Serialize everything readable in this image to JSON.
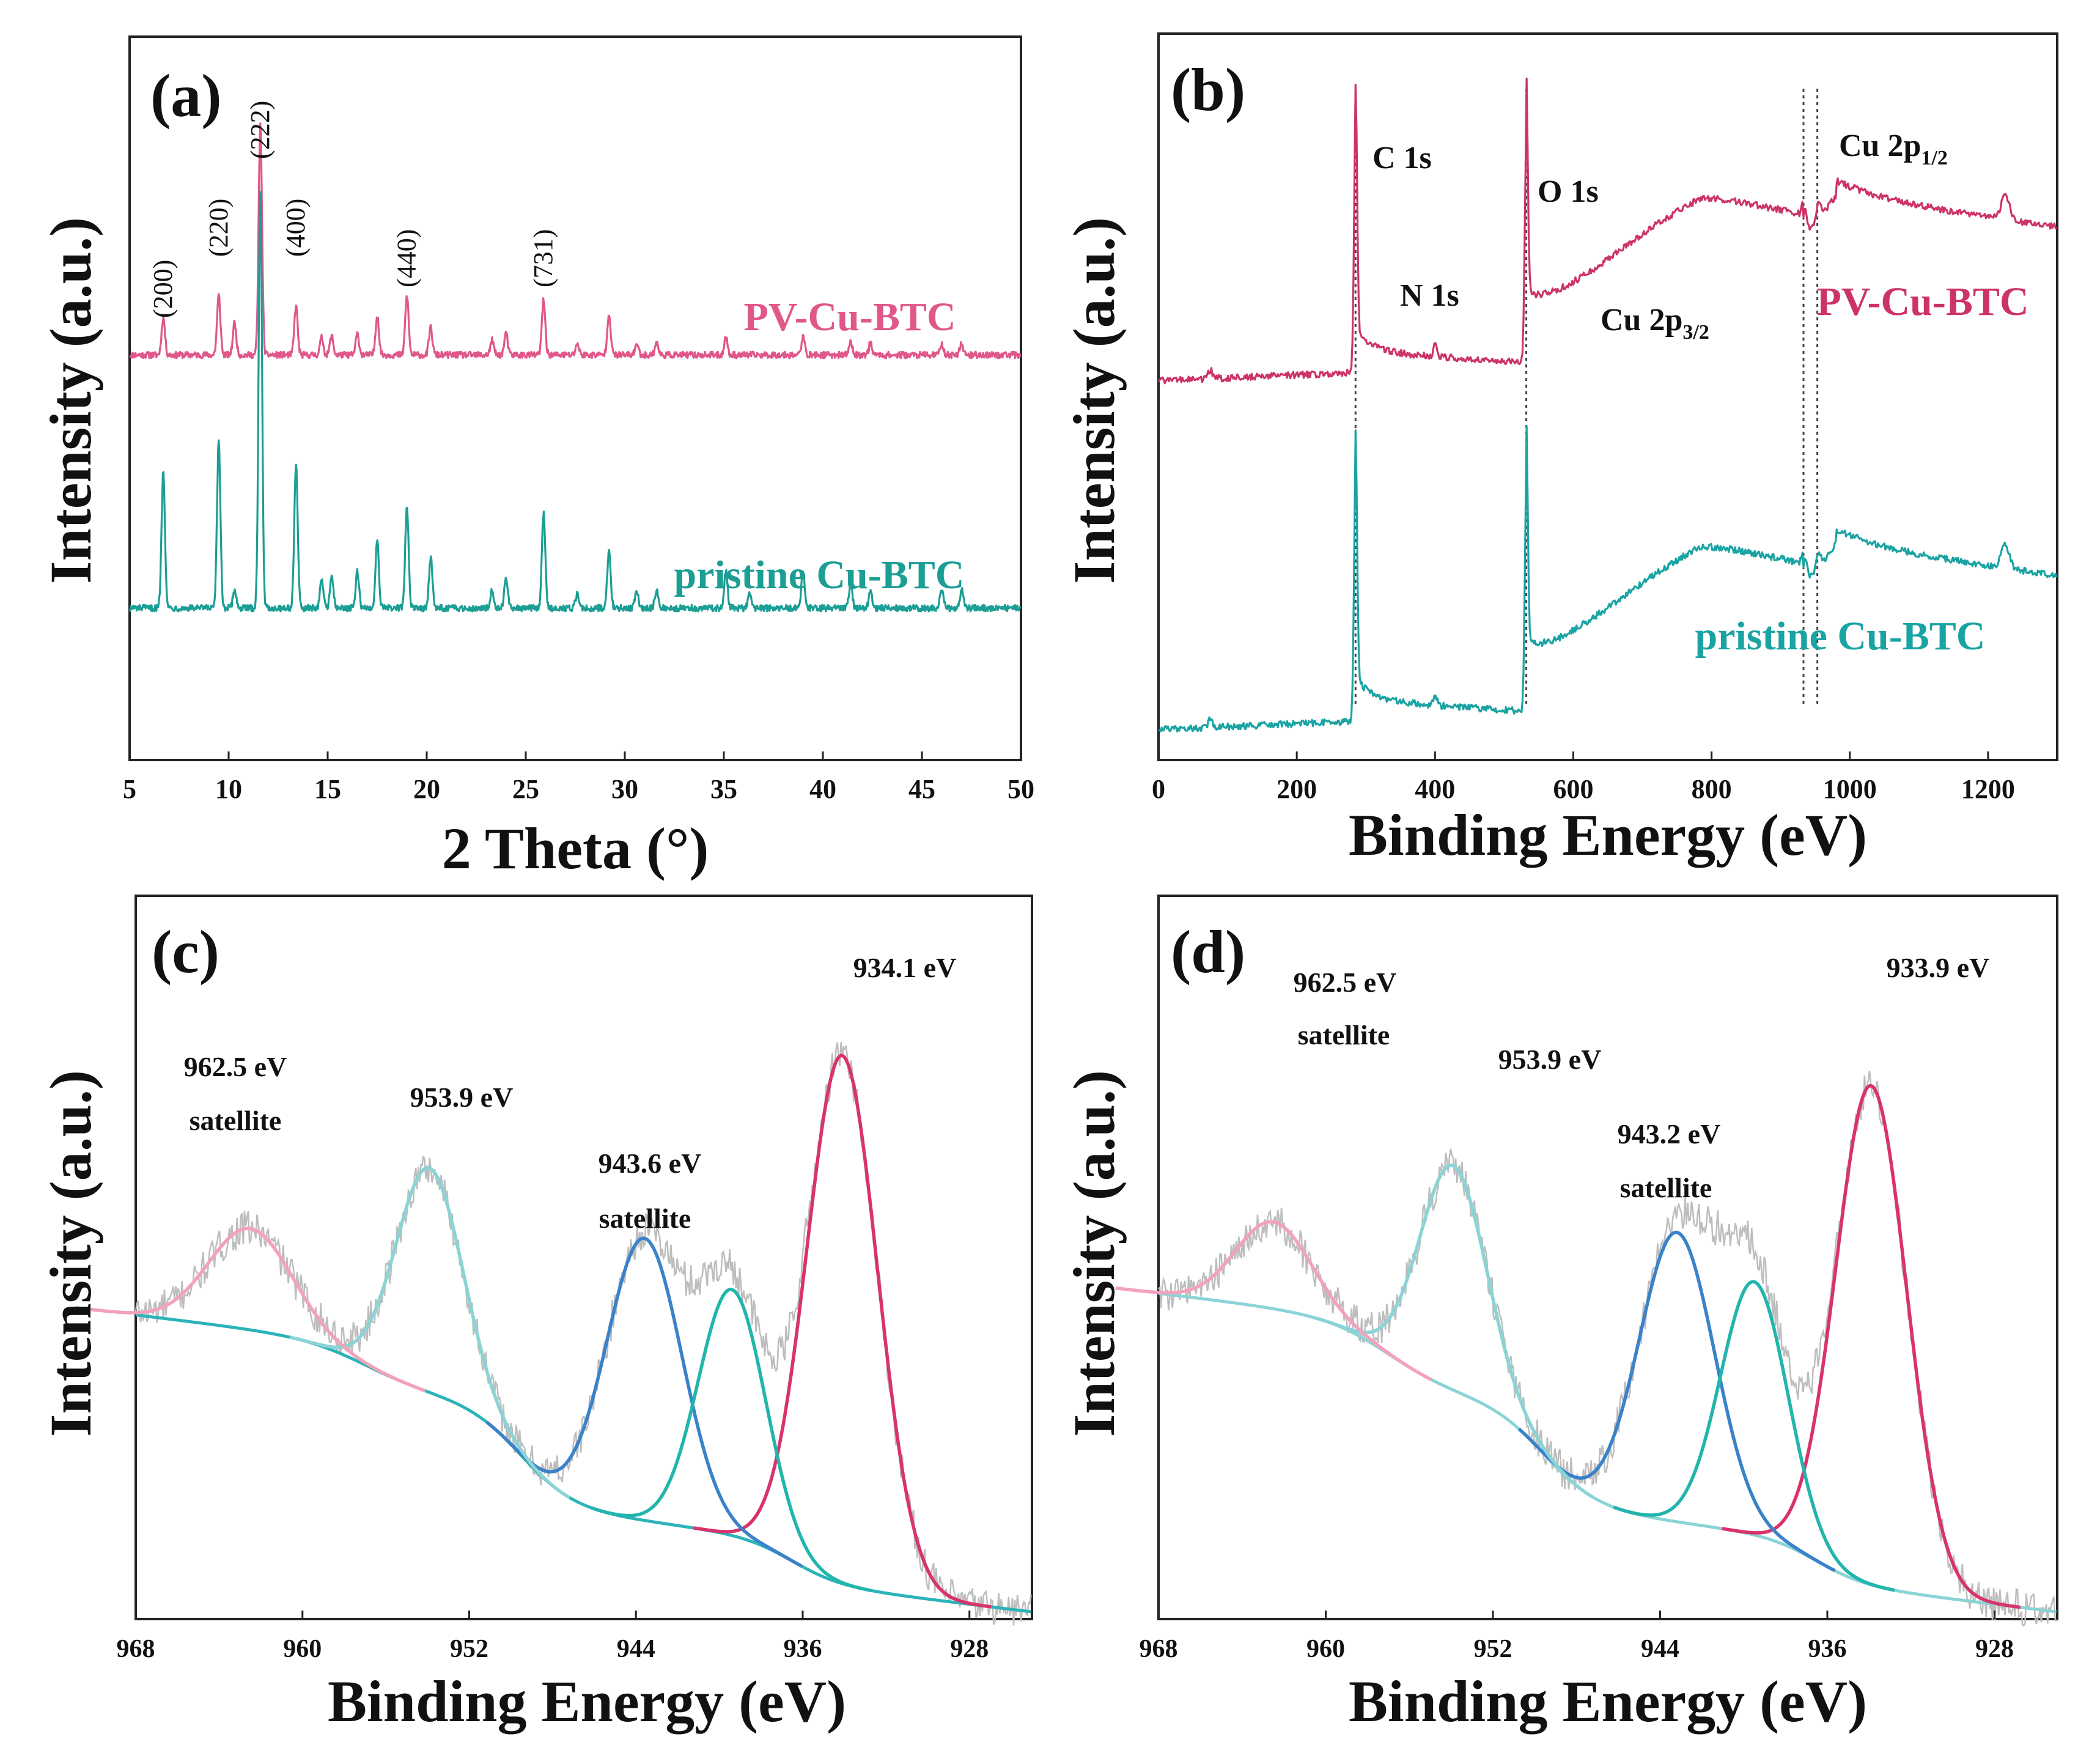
{
  "chart_data": [
    {
      "id": "a",
      "type": "line",
      "panel_label": "(a)",
      "xlabel": "2 Theta (°)",
      "ylabel": "Intensity (a.u.)",
      "xlim": [
        5,
        50
      ],
      "ylim": [
        0,
        100
      ],
      "xticks": [
        5,
        10,
        15,
        20,
        25,
        30,
        35,
        40,
        45,
        50
      ],
      "xtick_labels": [
        "5",
        "10",
        "15",
        "20",
        "25",
        "30",
        "35",
        "40",
        "45",
        "50"
      ],
      "series": [
        {
          "name": "PV-Cu-BTC",
          "color": "#e0578a",
          "baseline": 56,
          "peaks": [
            [
              6.7,
              5.2
            ],
            [
              9.5,
              8.2
            ],
            [
              10.3,
              4.5
            ],
            [
              11.6,
              32
            ],
            [
              13.4,
              6.8
            ],
            [
              14.7,
              2.4
            ],
            [
              15.2,
              2.6
            ],
            [
              16.5,
              2.9
            ],
            [
              17.5,
              5.5
            ],
            [
              19.0,
              8.2
            ],
            [
              20.2,
              3.8
            ],
            [
              23.3,
              2.0
            ],
            [
              24.0,
              3.0
            ],
            [
              25.9,
              7.6
            ],
            [
              27.6,
              1.6
            ],
            [
              29.2,
              5.8
            ],
            [
              30.6,
              1.5
            ],
            [
              31.6,
              1.7
            ],
            [
              35.1,
              2.4
            ],
            [
              39.0,
              2.4
            ],
            [
              41.4,
              1.8
            ],
            [
              42.4,
              1.6
            ],
            [
              46.0,
              1.5
            ],
            [
              47.0,
              1.7
            ]
          ],
          "label_position": "top-right"
        },
        {
          "name": "pristine Cu-BTC",
          "color": "#1b9e94",
          "baseline": 21,
          "peaks": [
            [
              6.7,
              19
            ],
            [
              9.5,
              23
            ],
            [
              10.3,
              2.5
            ],
            [
              11.6,
              58
            ],
            [
              13.4,
              20
            ],
            [
              14.7,
              4.0
            ],
            [
              15.2,
              4.5
            ],
            [
              16.5,
              5.0
            ],
            [
              17.5,
              9.5
            ],
            [
              19.0,
              14
            ],
            [
              20.2,
              7.0
            ],
            [
              23.3,
              2.5
            ],
            [
              24.0,
              4.5
            ],
            [
              25.9,
              13
            ],
            [
              27.6,
              2.0
            ],
            [
              29.2,
              8.0
            ],
            [
              30.6,
              2.5
            ],
            [
              31.6,
              2.5
            ],
            [
              35.1,
              5.0
            ],
            [
              36.3,
              1.8
            ],
            [
              39.0,
              5.0
            ],
            [
              41.4,
              3.0
            ],
            [
              42.4,
              2.5
            ],
            [
              46.0,
              2.5
            ],
            [
              47.0,
              2.5
            ]
          ],
          "label_position": "middle-right"
        }
      ],
      "annotations": [
        {
          "text": "(200)",
          "x": 6.7
        },
        {
          "text": "(220)",
          "x": 9.5
        },
        {
          "text": "(222)",
          "x": 11.6
        },
        {
          "text": "(400)",
          "x": 13.4
        },
        {
          "text": "(440)",
          "x": 19.0
        },
        {
          "text": "(731)",
          "x": 25.9
        }
      ]
    },
    {
      "id": "b",
      "type": "line",
      "panel_label": "(b)",
      "xlabel": "Binding Energy (eV)",
      "ylabel": "Intensity (a.u.)",
      "xlim": [
        0,
        1300
      ],
      "ylim": [
        0,
        100
      ],
      "xticks": [
        0,
        200,
        400,
        600,
        800,
        1000,
        1200
      ],
      "xtick_labels": [
        "0",
        "200",
        "400",
        "600",
        "800",
        "1000",
        "1200"
      ],
      "series": [
        {
          "name": "PV-Cu-BTC",
          "color": "#cc3366",
          "offset": 51,
          "label_position": "right"
        },
        {
          "name": "pristine Cu-BTC",
          "color": "#1aa3a3",
          "offset": 3,
          "label_position": "bottom-right"
        }
      ],
      "reference_lines": [
        285,
        532,
        933,
        953
      ],
      "annotations": [
        {
          "text": "C 1s",
          "x": 285
        },
        {
          "text": "N 1s",
          "x": 400
        },
        {
          "text": "O 1s",
          "x": 532
        },
        {
          "text": "Cu 2p",
          "sub": "3/2",
          "x": 933
        },
        {
          "text": "Cu 2p",
          "sub": "1/2",
          "x": 953
        }
      ]
    },
    {
      "id": "c",
      "type": "line",
      "panel_label": "(c)",
      "xlabel": "Binding Energy (eV)",
      "ylabel": "Intensity (a.u.)",
      "xlim": [
        968,
        925
      ],
      "ylim": [
        0,
        100
      ],
      "xticks": [
        968,
        960,
        952,
        944,
        936,
        928
      ],
      "xtick_labels": [
        "968",
        "960",
        "952",
        "944",
        "936",
        "928"
      ],
      "background_color": "#2bb3b8",
      "raw_color": "#bdbdbd",
      "components": [
        {
          "center": 934.1,
          "height": 73,
          "width": 1.7,
          "color": "#d8336a",
          "label": "934.1 eV"
        },
        {
          "center": 943.6,
          "height": 39,
          "width": 1.8,
          "color": "#3a82c9",
          "label": "943.6 eV",
          "sublabel": "satellite"
        },
        {
          "center": 939.4,
          "height": 34,
          "width": 1.6,
          "color": "#22b5ad",
          "label": ""
        },
        {
          "center": 953.9,
          "height": 31,
          "width": 1.6,
          "color": "#8ad3d6",
          "label": "953.9 eV"
        },
        {
          "center": 962.5,
          "height": 14,
          "width": 2.0,
          "color": "#f2a2bd",
          "label": "962.5 eV",
          "sublabel": "satellite"
        }
      ]
    },
    {
      "id": "d",
      "type": "line",
      "panel_label": "(d)",
      "xlabel": "Binding Energy (eV)",
      "ylabel": "Intensity (a.u.)",
      "xlim": [
        968,
        925
      ],
      "ylim": [
        0,
        100
      ],
      "xticks": [
        968,
        960,
        952,
        944,
        936,
        928
      ],
      "xtick_labels": [
        "968",
        "960",
        "952",
        "944",
        "936",
        "928"
      ],
      "background_color": "#8ad3d6",
      "raw_color": "#bdbdbd",
      "components": [
        {
          "center": 933.9,
          "height": 69,
          "width": 1.7,
          "color": "#d8336a",
          "label": "933.9 eV"
        },
        {
          "center": 943.2,
          "height": 40,
          "width": 1.8,
          "color": "#3a82c9",
          "label": "943.2 eV",
          "sublabel": "satellite"
        },
        {
          "center": 939.5,
          "height": 35,
          "width": 1.6,
          "color": "#22b5ad",
          "label": ""
        },
        {
          "center": 953.9,
          "height": 31,
          "width": 1.6,
          "color": "#8ad3d6",
          "label": "953.9 eV"
        },
        {
          "center": 962.5,
          "height": 12,
          "width": 1.8,
          "color": "#f2a2bd",
          "label": "962.5 eV",
          "sublabel": "satellite"
        }
      ]
    }
  ]
}
